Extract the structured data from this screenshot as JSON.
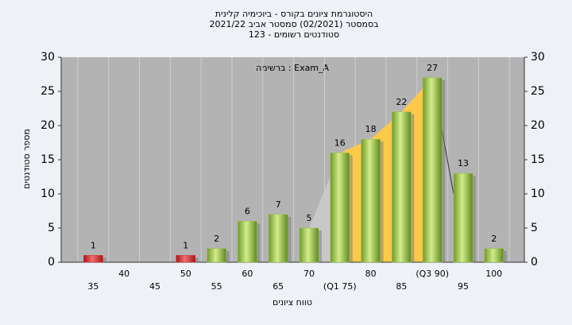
{
  "chart_data": {
    "type": "bar",
    "title": "היסטוגרמת ציונים בקורס - ביוכימיה קלינית",
    "subtitle": [
      "בסמסטר  (02/2021)  סמסטר אביב 2021/22",
      "סטודנטים רשומים - 123"
    ],
    "annotation": "ברשימה : Exam_A",
    "x_label": "טווח ציונים",
    "y_label": "מספר סטודנטים",
    "categories": [
      "35",
      "40",
      "45",
      "50",
      "55",
      "60",
      "65",
      "70",
      "(Q1 75)",
      "80",
      "85",
      "(Q3 90)",
      "95",
      "100"
    ],
    "values": [
      1,
      0,
      0,
      1,
      2,
      6,
      7,
      5,
      16,
      18,
      22,
      27,
      13,
      2
    ],
    "colors": [
      "#d9262b",
      "#d9262b",
      "#d9262b",
      "#d9262b",
      "#9cc24a",
      "#9cc24a",
      "#9cc24a",
      "#9cc24a",
      "#9cc24a",
      "#9cc24a",
      "#9cc24a",
      "#9cc24a",
      "#9cc24a",
      "#9cc24a"
    ],
    "ylim": [
      0,
      30
    ],
    "yticks": [
      0,
      5,
      10,
      15,
      20,
      25,
      30
    ],
    "y2lim": [
      0,
      30
    ],
    "y2ticks": [
      0,
      5,
      10,
      15,
      20,
      25,
      30
    ],
    "grid": "x"
  }
}
